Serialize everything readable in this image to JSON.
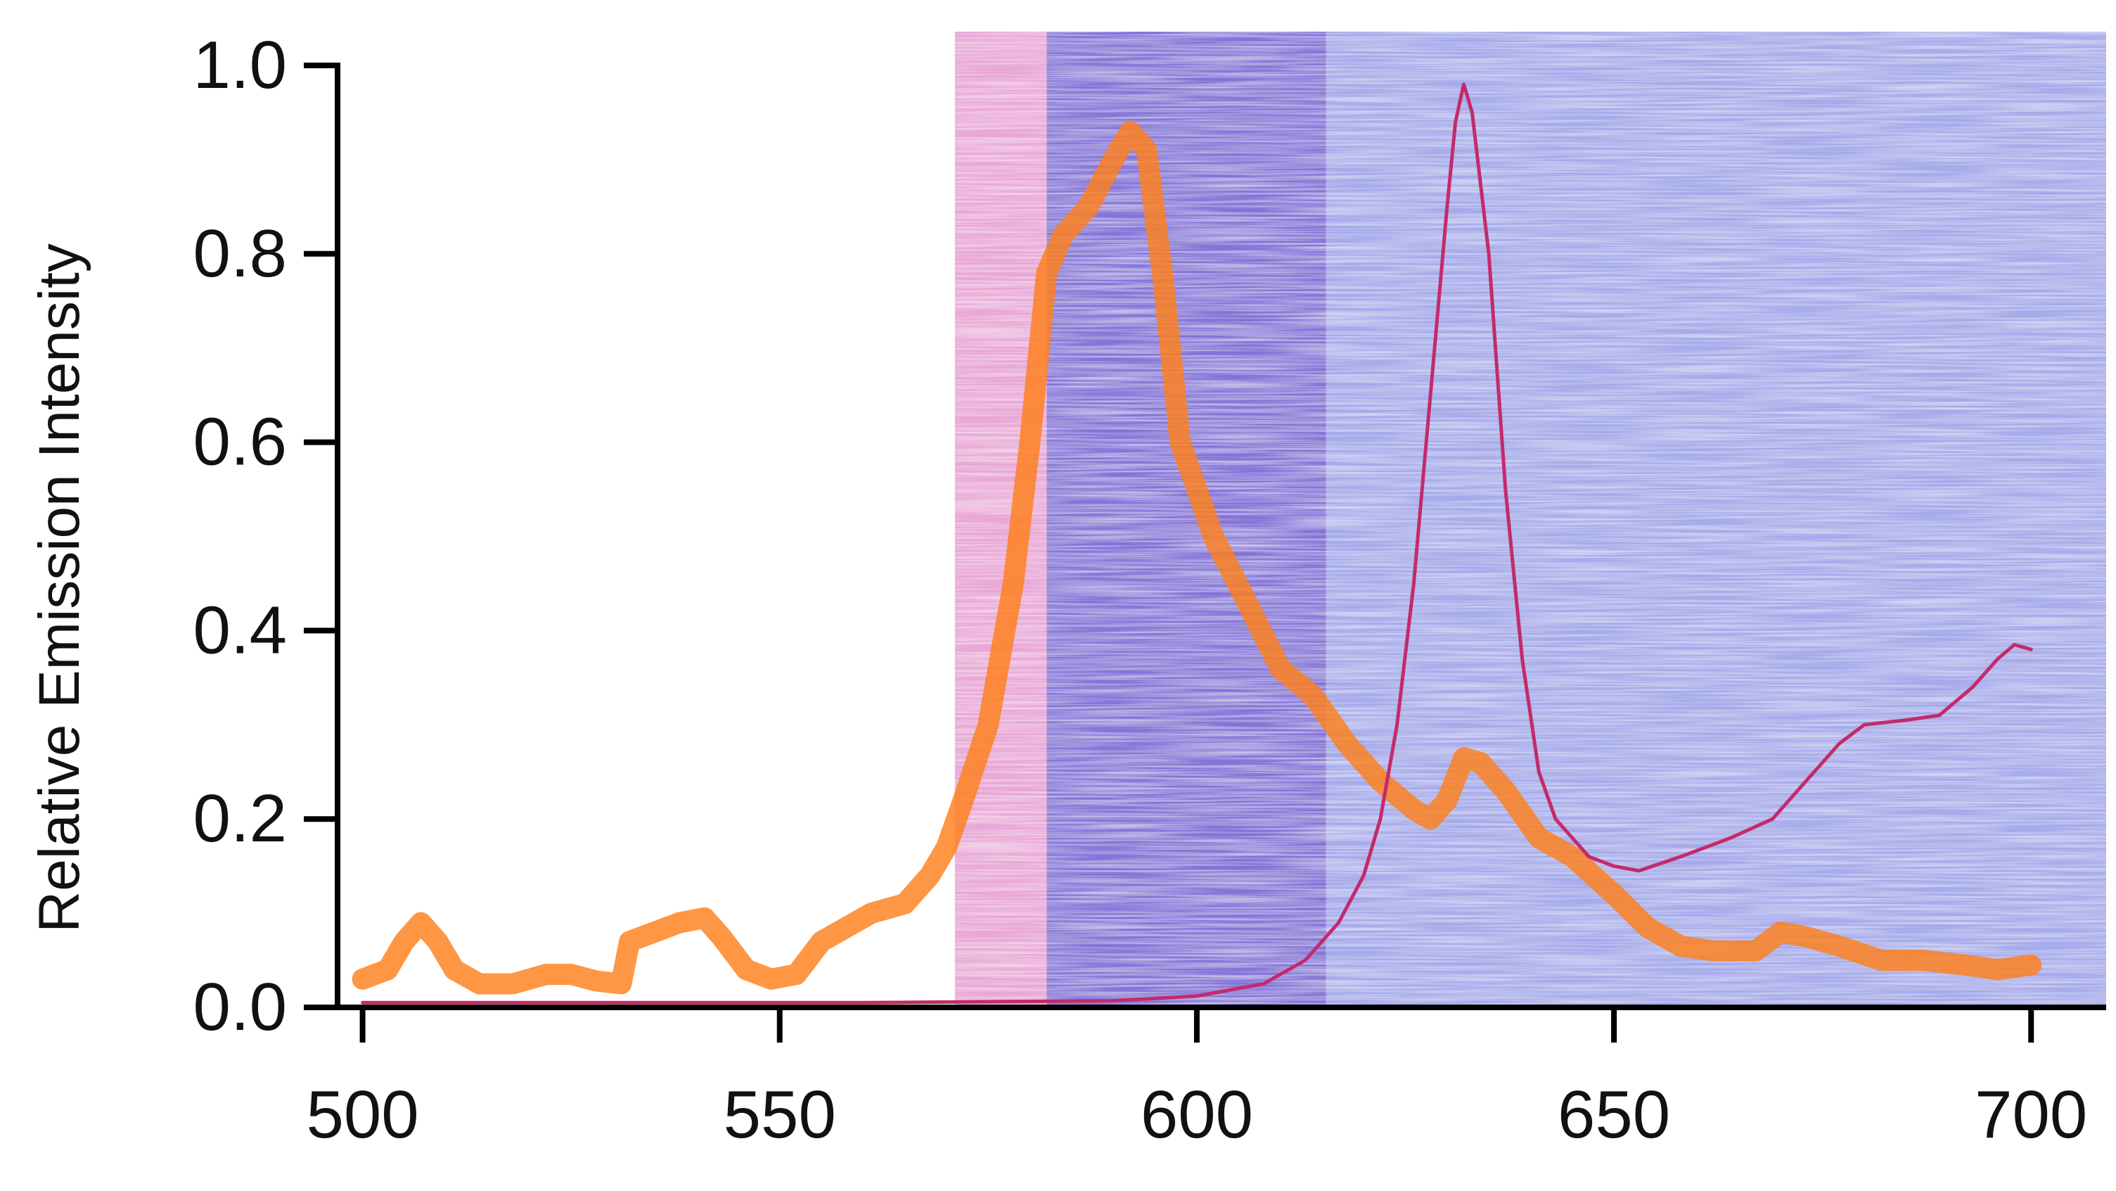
{
  "chart_data": {
    "type": "line",
    "xlabel": "",
    "ylabel": "Relative Emission Intensity",
    "xlim": [
      497,
      709
    ],
    "ylim": [
      0,
      1.0
    ],
    "x_ticks": [
      "500",
      "550",
      "600",
      "650",
      "700"
    ],
    "y_ticks": [
      "0.0",
      "0.2",
      "0.4",
      "0.6",
      "0.8",
      "1.0"
    ],
    "grid": false,
    "shaded_regions": [
      {
        "x_range": [
          571,
          582
        ],
        "color": "#e9a6d6"
      },
      {
        "x_range": [
          582,
          615.5
        ],
        "color": "#8472d8"
      },
      {
        "x_range": [
          615.5,
          709
        ],
        "color": "#a5aaea"
      }
    ],
    "series": [
      {
        "color": "#ff7f1a",
        "style": "thick",
        "points": [
          [
            500,
            0.03
          ],
          [
            503,
            0.04
          ],
          [
            505,
            0.07
          ],
          [
            507,
            0.09
          ],
          [
            509,
            0.07
          ],
          [
            511,
            0.04
          ],
          [
            514,
            0.025
          ],
          [
            518,
            0.025
          ],
          [
            522,
            0.035
          ],
          [
            525,
            0.035
          ],
          [
            528,
            0.028
          ],
          [
            531,
            0.025
          ],
          [
            532,
            0.07
          ],
          [
            535,
            0.08
          ],
          [
            538,
            0.09
          ],
          [
            541,
            0.095
          ],
          [
            543,
            0.075
          ],
          [
            546,
            0.04
          ],
          [
            549,
            0.03
          ],
          [
            552,
            0.035
          ],
          [
            555,
            0.07
          ],
          [
            558,
            0.085
          ],
          [
            561,
            0.1
          ],
          [
            565,
            0.11
          ],
          [
            568,
            0.14
          ],
          [
            570,
            0.17
          ],
          [
            572,
            0.22
          ],
          [
            575,
            0.3
          ],
          [
            578,
            0.45
          ],
          [
            580,
            0.6
          ],
          [
            582,
            0.78
          ],
          [
            584,
            0.82
          ],
          [
            587,
            0.85
          ],
          [
            590,
            0.9
          ],
          [
            592,
            0.93
          ],
          [
            594,
            0.91
          ],
          [
            596,
            0.77
          ],
          [
            598,
            0.6
          ],
          [
            602,
            0.5
          ],
          [
            606,
            0.43
          ],
          [
            610,
            0.36
          ],
          [
            614,
            0.33
          ],
          [
            618,
            0.28
          ],
          [
            622,
            0.24
          ],
          [
            626,
            0.21
          ],
          [
            628,
            0.2
          ],
          [
            630,
            0.22
          ],
          [
            632,
            0.265
          ],
          [
            634,
            0.26
          ],
          [
            637,
            0.23
          ],
          [
            641,
            0.18
          ],
          [
            645,
            0.16
          ],
          [
            650,
            0.12
          ],
          [
            654,
            0.085
          ],
          [
            658,
            0.065
          ],
          [
            662,
            0.06
          ],
          [
            667,
            0.06
          ],
          [
            670,
            0.08
          ],
          [
            673,
            0.075
          ],
          [
            677,
            0.065
          ],
          [
            682,
            0.05
          ],
          [
            687,
            0.05
          ],
          [
            692,
            0.045
          ],
          [
            696,
            0.04
          ],
          [
            700,
            0.045
          ]
        ]
      },
      {
        "color": "#c42a6a",
        "style": "thin",
        "points": [
          [
            500,
            0.005
          ],
          [
            560,
            0.005
          ],
          [
            590,
            0.007
          ],
          [
            600,
            0.012
          ],
          [
            608,
            0.025
          ],
          [
            613,
            0.05
          ],
          [
            617,
            0.09
          ],
          [
            620,
            0.14
          ],
          [
            622,
            0.2
          ],
          [
            624,
            0.3
          ],
          [
            626,
            0.45
          ],
          [
            628,
            0.65
          ],
          [
            630,
            0.85
          ],
          [
            631,
            0.94
          ],
          [
            632,
            0.98
          ],
          [
            633,
            0.95
          ],
          [
            635,
            0.8
          ],
          [
            637,
            0.55
          ],
          [
            639,
            0.37
          ],
          [
            641,
            0.25
          ],
          [
            643,
            0.2
          ],
          [
            647,
            0.16
          ],
          [
            650,
            0.15
          ],
          [
            653,
            0.145
          ],
          [
            658,
            0.16
          ],
          [
            664,
            0.18
          ],
          [
            669,
            0.2
          ],
          [
            673,
            0.24
          ],
          [
            677,
            0.28
          ],
          [
            680,
            0.3
          ],
          [
            685,
            0.305
          ],
          [
            689,
            0.31
          ],
          [
            693,
            0.34
          ],
          [
            696,
            0.37
          ],
          [
            698,
            0.385
          ],
          [
            700,
            0.38
          ]
        ]
      }
    ]
  }
}
